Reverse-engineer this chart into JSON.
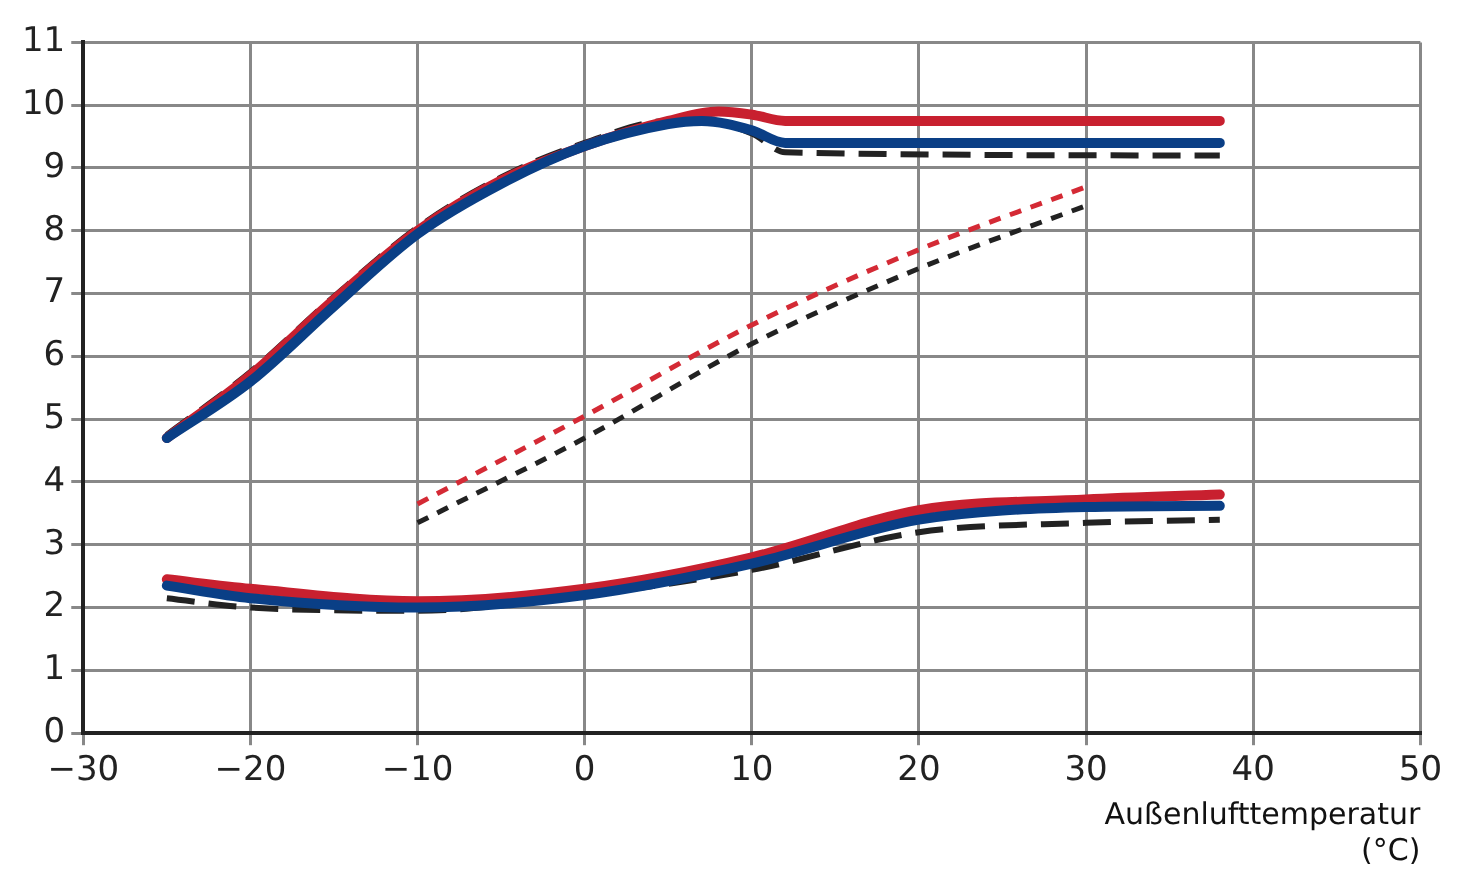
{
  "chart_data": {
    "type": "line",
    "xlabel": "Außenlufttemperatur (°C)",
    "xlim": [
      -30,
      50
    ],
    "xticks": [
      -30,
      -20,
      -10,
      0,
      10,
      20,
      30,
      40,
      50
    ],
    "ylim": [
      0,
      11
    ],
    "yticks": [
      0,
      1,
      2,
      3,
      4,
      5,
      6,
      7,
      8,
      9,
      10,
      11
    ],
    "grid": true,
    "legend": false,
    "marker": "none",
    "series": [
      {
        "color": "#0a3f86",
        "line_style": "solid",
        "x": [
          -25,
          -20,
          -15,
          -10,
          -5,
          0,
          5,
          7,
          10,
          12,
          38
        ],
        "values": [
          4.7,
          5.6,
          6.8,
          7.95,
          8.75,
          9.35,
          9.7,
          9.75,
          9.6,
          9.4,
          9.4
        ]
      },
      {
        "color": "#c8202f",
        "line_style": "solid",
        "x": [
          -25,
          -20,
          -15,
          -10,
          -5,
          0,
          5,
          8,
          10,
          12,
          38
        ],
        "values": [
          4.7,
          5.7,
          6.9,
          8.0,
          8.8,
          9.35,
          9.75,
          9.9,
          9.85,
          9.75,
          9.75
        ]
      },
      {
        "color": "#222222",
        "line_style": "dashed",
        "x": [
          -25,
          -20,
          -15,
          -10,
          -5,
          0,
          5,
          7,
          10,
          12,
          38
        ],
        "values": [
          4.75,
          5.75,
          6.95,
          8.05,
          8.85,
          9.4,
          9.75,
          9.75,
          9.55,
          9.25,
          9.2
        ]
      },
      {
        "color": "#d42a35",
        "line_style": "dotted",
        "x": [
          -10,
          0,
          10,
          20,
          30
        ],
        "values": [
          3.65,
          5.05,
          6.5,
          7.7,
          8.7
        ]
      },
      {
        "color": "#222222",
        "line_style": "dotted",
        "x": [
          -10,
          0,
          10,
          20,
          30
        ],
        "values": [
          3.35,
          4.7,
          6.2,
          7.4,
          8.4
        ]
      },
      {
        "color": "#0a3f86",
        "line_style": "solid",
        "x": [
          -25,
          -20,
          -10,
          0,
          10,
          20,
          30,
          38
        ],
        "values": [
          2.35,
          2.15,
          2.0,
          2.2,
          2.7,
          3.4,
          3.6,
          3.62
        ]
      },
      {
        "color": "#c8202f",
        "line_style": "solid",
        "x": [
          -25,
          -20,
          -10,
          0,
          10,
          20,
          30,
          38
        ],
        "values": [
          2.45,
          2.3,
          2.1,
          2.3,
          2.8,
          3.55,
          3.72,
          3.8
        ]
      },
      {
        "color": "#222222",
        "line_style": "dashed",
        "x": [
          -25,
          -20,
          -10,
          0,
          10,
          20,
          30,
          38
        ],
        "values": [
          2.15,
          2.0,
          1.95,
          2.2,
          2.6,
          3.2,
          3.35,
          3.4
        ]
      }
    ]
  }
}
